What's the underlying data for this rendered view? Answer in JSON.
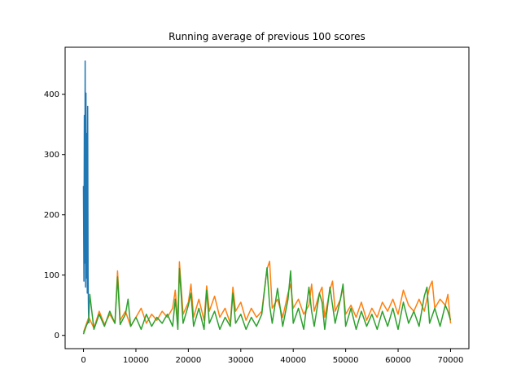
{
  "chart_data": {
    "type": "line",
    "title": "Running average of previous 100 scores",
    "xlabel": "",
    "ylabel": "",
    "xlim": [
      -3500,
      73500
    ],
    "ylim": [
      -22,
      478
    ],
    "xticks": [
      0,
      10000,
      20000,
      30000,
      40000,
      50000,
      60000,
      70000
    ],
    "yticks": [
      0,
      100,
      200,
      300,
      400
    ],
    "grid": false,
    "legend": "none",
    "series": [
      {
        "color": "#1f77b4",
        "x": [
          0,
          80,
          160,
          240,
          320,
          400,
          480,
          560,
          640,
          720,
          800,
          880,
          960,
          1040
        ],
        "y": [
          248,
          90,
          365,
          120,
          455,
          80,
          402,
          95,
          335,
          70,
          380,
          100,
          40,
          20
        ]
      },
      {
        "color": "#ff7f0e",
        "x": [
          0,
          1000,
          2000,
          3000,
          4000,
          5000,
          6000,
          6500,
          7000,
          8000,
          9000,
          10000,
          11000,
          12000,
          13000,
          14000,
          15000,
          16000,
          17000,
          17500,
          18000,
          18300,
          19000,
          20000,
          20500,
          21000,
          22000,
          23000,
          23500,
          24000,
          25000,
          26000,
          27000,
          28000,
          28500,
          29000,
          30000,
          31000,
          32000,
          33000,
          34000,
          35000,
          35500,
          36000,
          37000,
          38000,
          39000,
          39500,
          40000,
          41000,
          42000,
          43000,
          43500,
          44000,
          45000,
          45500,
          46000,
          47000,
          47500,
          48000,
          49000,
          49500,
          50000,
          51000,
          52000,
          53000,
          54000,
          55000,
          56000,
          57000,
          58000,
          59000,
          60000,
          61000,
          62000,
          63000,
          64000,
          65000,
          66000,
          66500,
          67000,
          68000,
          69000,
          69500,
          70000
        ],
        "y": [
          5,
          30,
          12,
          40,
          18,
          35,
          20,
          107,
          25,
          40,
          15,
          30,
          45,
          20,
          35,
          25,
          40,
          30,
          45,
          75,
          20,
          122,
          35,
          55,
          85,
          30,
          60,
          25,
          82,
          40,
          65,
          30,
          45,
          20,
          80,
          40,
          55,
          25,
          45,
          30,
          40,
          110,
          123,
          45,
          60,
          30,
          70,
          85,
          45,
          60,
          35,
          50,
          85,
          40,
          70,
          80,
          30,
          75,
          90,
          40,
          60,
          80,
          35,
          50,
          30,
          55,
          25,
          45,
          30,
          55,
          40,
          60,
          35,
          75,
          50,
          40,
          60,
          40,
          80,
          90,
          45,
          60,
          50,
          68,
          20
        ]
      },
      {
        "color": "#2ca02c",
        "x": [
          0,
          500,
          1000,
          1200,
          2000,
          3000,
          4000,
          5000,
          6000,
          6500,
          7000,
          8000,
          8500,
          9000,
          10000,
          11000,
          12000,
          13000,
          14000,
          15000,
          16000,
          17000,
          17500,
          18000,
          18300,
          19000,
          20000,
          20500,
          21000,
          22000,
          23000,
          23500,
          24000,
          25000,
          26000,
          27000,
          28000,
          28500,
          29000,
          30000,
          31000,
          32000,
          33000,
          34000,
          35000,
          35500,
          36000,
          37000,
          38000,
          39000,
          39500,
          40000,
          41000,
          42000,
          43000,
          43500,
          44000,
          45000,
          45500,
          46000,
          47000,
          47500,
          48000,
          49000,
          49500,
          50000,
          51000,
          52000,
          53000,
          54000,
          55000,
          56000,
          57000,
          58000,
          59000,
          60000,
          61000,
          62000,
          63000,
          64000,
          65000,
          65500,
          66000,
          67000,
          68000,
          69000,
          69500,
          70000
        ],
        "y": [
          2,
          15,
          25,
          68,
          10,
          35,
          15,
          40,
          20,
          97,
          18,
          35,
          60,
          15,
          30,
          10,
          35,
          15,
          30,
          20,
          35,
          15,
          60,
          10,
          111,
          20,
          50,
          70,
          15,
          45,
          10,
          75,
          20,
          40,
          10,
          30,
          15,
          70,
          20,
          35,
          10,
          30,
          15,
          35,
          112,
          50,
          20,
          78,
          15,
          60,
          107,
          20,
          45,
          10,
          80,
          40,
          15,
          70,
          55,
          10,
          80,
          50,
          20,
          60,
          85,
          15,
          45,
          10,
          40,
          15,
          35,
          10,
          40,
          15,
          45,
          10,
          55,
          20,
          40,
          15,
          65,
          80,
          20,
          45,
          15,
          50,
          40,
          25
        ]
      }
    ]
  }
}
